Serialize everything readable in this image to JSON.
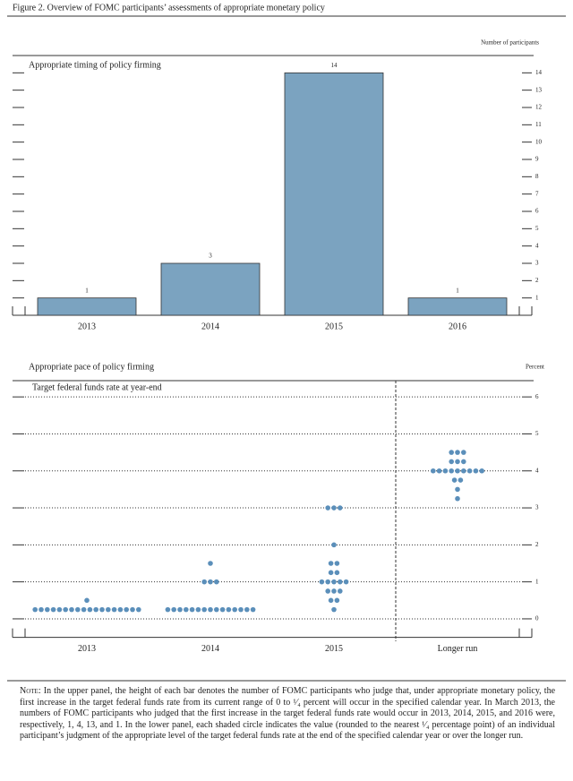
{
  "figure_title": "Figure 2. Overview of FOMC participants’ assessments of appropriate monetary policy",
  "chart_data": [
    {
      "type": "bar",
      "title": "Appropriate timing of policy firming",
      "y_label": "Number of participants",
      "categories": [
        "2013",
        "2014",
        "2015",
        "2016"
      ],
      "values": [
        1,
        3,
        14,
        1
      ],
      "color": "#7ba3c0",
      "ylim": [
        0,
        15
      ],
      "yticks": [
        1,
        2,
        3,
        4,
        5,
        6,
        7,
        8,
        9,
        10,
        11,
        12,
        13,
        14
      ]
    },
    {
      "type": "dot",
      "title": "Appropriate pace of policy firming",
      "subtitle": "Target federal funds rate at year-end",
      "y_label": "Percent",
      "categories": [
        "2013",
        "2014",
        "2015",
        "Longer run"
      ],
      "color": "#5b8fba",
      "values": [
        [
          0.25,
          0.25,
          0.25,
          0.25,
          0.25,
          0.25,
          0.25,
          0.25,
          0.25,
          0.25,
          0.25,
          0.25,
          0.25,
          0.25,
          0.25,
          0.25,
          0.25,
          0.25,
          0.5
        ],
        [
          0.25,
          0.25,
          0.25,
          0.25,
          0.25,
          0.25,
          0.25,
          0.25,
          0.25,
          0.25,
          0.25,
          0.25,
          0.25,
          0.25,
          0.25,
          1,
          1,
          1,
          1.5
        ],
        [
          0.25,
          0.5,
          0.5,
          0.75,
          0.75,
          0.75,
          1,
          1,
          1,
          1,
          1,
          1.25,
          1.25,
          1.5,
          1.5,
          2,
          3,
          3,
          3
        ],
        [
          3.25,
          3.5,
          3.75,
          3.75,
          4,
          4,
          4,
          4,
          4,
          4,
          4,
          4,
          4,
          4.25,
          4.25,
          4.25,
          4.5,
          4.5,
          4.5
        ]
      ],
      "ylim": [
        -0.5,
        6.5
      ],
      "yticks": [
        0,
        1,
        2,
        3,
        4,
        5,
        6
      ],
      "grid": true
    }
  ],
  "note_label": "Note:",
  "note": "In the upper panel, the height of each bar denotes the number of FOMC participants who judge that, under appropriate monetary policy, the first increase in the target federal funds rate from its current range of 0 to ¹⁄₄ percent will occur in the specified calendar year. In March 2013, the numbers of FOMC participants who judged that the first increase in the target federal funds rate would occur in 2013, 2014, 2015, and 2016 were, respectively, 1, 4, 13, and 1. In the lower panel, each shaded circle indicates the value (rounded to the nearest ¹⁄₄ percentage point) of an individual participant’s judgment of the appropriate level of the target federal funds rate at the end of the specified calendar year or over the longer run."
}
